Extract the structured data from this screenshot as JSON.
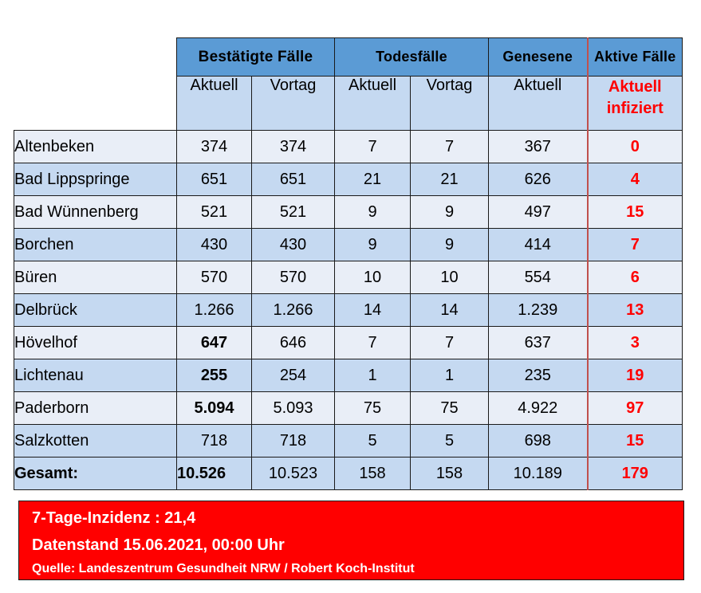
{
  "header": {
    "group_confirmed": "Bestätigte Fälle",
    "group_deaths": "Todesfälle",
    "group_recovered": "Genesene",
    "group_active": "Aktive Fälle",
    "sub_current": "Aktuell",
    "sub_previous": "Vortag",
    "sub_active_line1": "Aktuell",
    "sub_active_line2": "infiziert"
  },
  "rows": [
    {
      "name": "Altenbeken",
      "conf_cur": "374",
      "conf_prev": "374",
      "death_cur": "7",
      "death_prev": "7",
      "recovered": "367",
      "active": "0"
    },
    {
      "name": "Bad Lippspringe",
      "conf_cur": "651",
      "conf_prev": "651",
      "death_cur": "21",
      "death_prev": "21",
      "recovered": "626",
      "active": "4"
    },
    {
      "name": "Bad Wünnenberg",
      "conf_cur": "521",
      "conf_prev": "521",
      "death_cur": "9",
      "death_prev": "9",
      "recovered": "497",
      "active": "15"
    },
    {
      "name": "Borchen",
      "conf_cur": "430",
      "conf_prev": "430",
      "death_cur": "9",
      "death_prev": "9",
      "recovered": "414",
      "active": "7"
    },
    {
      "name": "Büren",
      "conf_cur": "570",
      "conf_prev": "570",
      "death_cur": "10",
      "death_prev": "10",
      "recovered": "554",
      "active": "6"
    },
    {
      "name": "Delbrück",
      "conf_cur": "1.266",
      "conf_prev": "1.266",
      "death_cur": "14",
      "death_prev": "14",
      "recovered": "1.239",
      "active": "13"
    },
    {
      "name": "Hövelhof",
      "conf_cur": "647",
      "conf_prev": "646",
      "death_cur": "7",
      "death_prev": "7",
      "recovered": "637",
      "active": "3"
    },
    {
      "name": "Lichtenau",
      "conf_cur": "255",
      "conf_prev": "254",
      "death_cur": "1",
      "death_prev": "1",
      "recovered": "235",
      "active": "19"
    },
    {
      "name": "Paderborn",
      "conf_cur": "5.094",
      "conf_prev": "5.093",
      "death_cur": "75",
      "death_prev": "75",
      "recovered": "4.922",
      "active": "97"
    },
    {
      "name": "Salzkotten",
      "conf_cur": "718",
      "conf_prev": "718",
      "death_cur": "5",
      "death_prev": "5",
      "recovered": "698",
      "active": "15"
    }
  ],
  "total": {
    "name": "Gesamt:",
    "conf_cur": "10.526",
    "conf_prev": "10.523",
    "death_cur": "158",
    "death_prev": "158",
    "recovered": "10.189",
    "active": "179"
  },
  "footer": {
    "incidence": "7-Tage-Inzidenz : 21,4",
    "data_status": "Datenstand 15.06.2021, 00:00 Uhr",
    "source": "Quelle: Landeszentrum Gesundheit NRW / Robert Koch-Institut"
  },
  "colors": {
    "header_blue": "#5b9bd5",
    "light_blue": "#c5d9f1",
    "pale_row": "#e9eef7",
    "accent_red": "#ff0000"
  }
}
